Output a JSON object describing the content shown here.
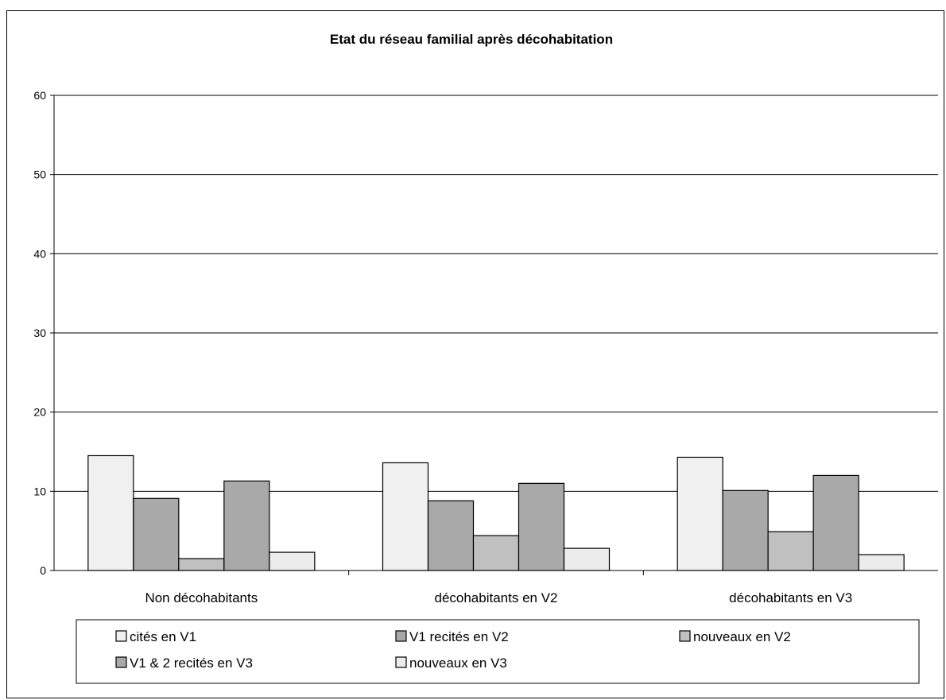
{
  "chart_data": {
    "type": "bar",
    "title": "Etat du réseau familial après décohabitation",
    "xlabel": "",
    "ylabel": "",
    "ylim": [
      0,
      60
    ],
    "yticks": [
      0,
      10,
      20,
      30,
      40,
      50,
      60
    ],
    "grid": true,
    "legend_position": "bottom",
    "categories": [
      "Non décohabitants",
      "décohabitants en V2",
      "décohabitants en V3"
    ],
    "series": [
      {
        "name": "cités en V1",
        "values": [
          14.5,
          13.6,
          14.3
        ],
        "color": "#f0f0f0"
      },
      {
        "name": "V1 recités en V2",
        "values": [
          9.1,
          8.8,
          10.1
        ],
        "color": "#a9a9a9"
      },
      {
        "name": "nouveaux en V2",
        "values": [
          1.5,
          4.4,
          4.9
        ],
        "color": "#c0c0c0"
      },
      {
        "name": "V1 & 2 recités en V3",
        "values": [
          11.3,
          11.0,
          12.0
        ],
        "color": "#a9a9a9"
      },
      {
        "name": "nouveaux en V3",
        "values": [
          2.3,
          2.8,
          2.0
        ],
        "color": "#ececec"
      }
    ]
  }
}
